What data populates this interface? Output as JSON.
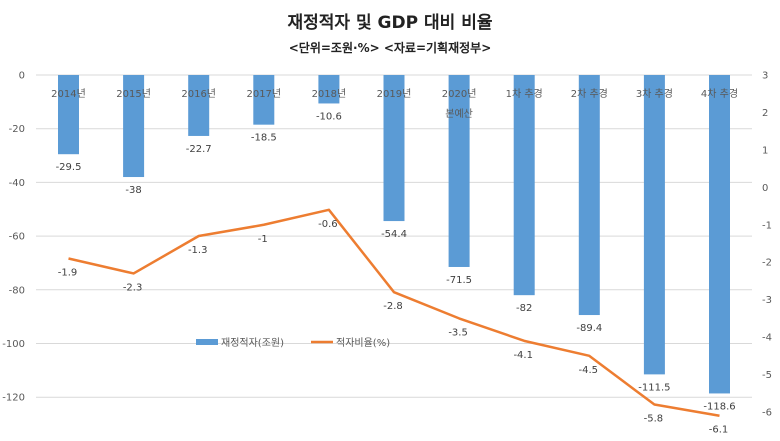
{
  "chart_data": {
    "type": "bar+line",
    "title": "재정적자 및 GDP 대비 비율",
    "subtitle": "<단위=조원·%> <자료=기획재정부>",
    "categories": [
      "2014년",
      "2015년",
      "2016년",
      "2017년",
      "2018년",
      "2019년",
      "2020년\n본예산",
      "1차 추경",
      "2차 추경",
      "3차 추경",
      "4차 추경"
    ],
    "series": [
      {
        "name": "재정적자(조원)",
        "type": "bar",
        "axis": "left",
        "color": "#5B9BD5",
        "values": [
          -29.5,
          -38,
          -22.7,
          -18.5,
          -10.6,
          -54.4,
          -71.5,
          -82,
          -89.4,
          -111.5,
          -118.6
        ]
      },
      {
        "name": "적자비율(%)",
        "type": "line",
        "axis": "right",
        "color": "#ED7D31",
        "values": [
          -1.9,
          -2.3,
          -1.3,
          -1,
          -0.6,
          -2.8,
          -3.5,
          -4.1,
          -4.5,
          -5.8,
          -6.1
        ]
      }
    ],
    "y_left": {
      "ticks": [
        0,
        -20,
        -40,
        -60,
        -80,
        -100,
        -120
      ],
      "range": [
        -130,
        0
      ]
    },
    "y_right": {
      "ticks": [
        3,
        2,
        1,
        0,
        -1,
        -2,
        -3,
        -4,
        -5,
        -6
      ],
      "range": [
        -6.3,
        3
      ]
    },
    "grid": true,
    "legend": "center-bottom-inside"
  }
}
